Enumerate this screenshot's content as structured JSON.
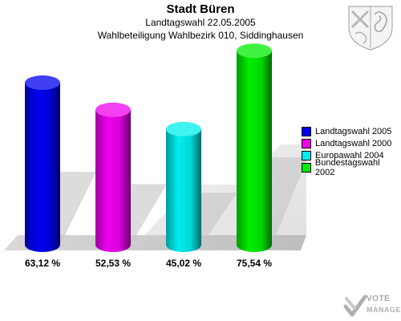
{
  "header": {
    "title": "Stadt Büren",
    "subtitle": "Landtagswahl 22.05.2005",
    "subtitle2": "Wahlbeteiligung Wahlbezirk 010, Siddinghausen"
  },
  "brand": {
    "line1": "VOTE",
    "line2": "MANAGER"
  },
  "chart_data": {
    "type": "bar",
    "title": "Stadt Büren",
    "subtitle": "Landtagswahl 22.05.2005 / Wahlbeteiligung Wahlbezirk 010, Siddinghausen",
    "categories": [
      "Landtagswahl 2005",
      "Landtagswahl 2000",
      "Europawahl 2004",
      "Bundestagswahl 2002"
    ],
    "values": [
      63.12,
      52.53,
      45.02,
      75.54
    ],
    "value_labels": [
      "63,12 %",
      "52,53 %",
      "45,02 %",
      "75,54 %"
    ],
    "colors": [
      "#0000ee",
      "#ee00ee",
      "#00eeee",
      "#00ee00"
    ],
    "ylim": [
      0,
      100
    ],
    "grid": false,
    "legend_position": "right",
    "legend": [
      {
        "label": "Landtagswahl 2005",
        "color": "#0000ee"
      },
      {
        "label": "Landtagswahl 2000",
        "color": "#ee00ee"
      },
      {
        "label": "Europawahl 2004",
        "color": "#00eeee"
      },
      {
        "label": "Bundestagswahl 2002",
        "color": "#00ee00"
      }
    ]
  }
}
